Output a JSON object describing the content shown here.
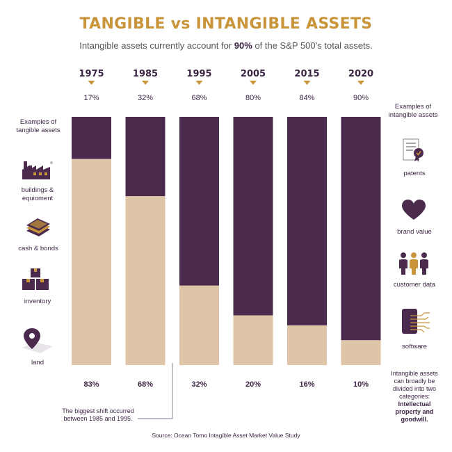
{
  "title": "TANGIBLE  vs INTANGIBLE ASSETS",
  "subtitle": {
    "before": "Intangible assets currently account for ",
    "bold": "90%",
    "after": " of the S&P 500’s total assets."
  },
  "tangible_examples": {
    "heading": "Examples of tangible assets",
    "items": [
      {
        "label": "buildings & equioment",
        "icon": "factory-icon"
      },
      {
        "label": "cash & bonds",
        "icon": "cash-stack-icon"
      },
      {
        "label": "inventory",
        "icon": "boxes-icon"
      },
      {
        "label": "land",
        "icon": "map-pin-icon"
      }
    ]
  },
  "intangible_examples": {
    "heading": "Examples of intangible assets",
    "items": [
      {
        "label": "patents",
        "icon": "certificate-icon"
      },
      {
        "label": "brand value",
        "icon": "heart-icon"
      },
      {
        "label": "customer data",
        "icon": "people-icon"
      },
      {
        "label": "software",
        "icon": "circuit-icon"
      }
    ]
  },
  "intangible_note": {
    "text": "Intangible assets can broadly be divided into two categories: ",
    "bold": "Intellectual property and goodwill."
  },
  "shift_note": "The biggest shift occurred between 1985 and 1995.",
  "source": "Source: Ocean Tomo Intagible Asset Market Value Study",
  "colors": {
    "intangible": "#4a2b4d",
    "tangible": "#dfc5a7",
    "accent": "#c9953a",
    "text": "#3d2645"
  },
  "chart_data": {
    "type": "bar",
    "stacked": true,
    "categories": [
      "1975",
      "1985",
      "1995",
      "2005",
      "2015",
      "2020"
    ],
    "series": [
      {
        "name": "intangible",
        "values": [
          17,
          32,
          68,
          80,
          84,
          90
        ]
      },
      {
        "name": "tangible",
        "values": [
          83,
          68,
          32,
          20,
          16,
          10
        ]
      }
    ],
    "top_labels": [
      "17%",
      "32%",
      "68%",
      "80%",
      "84%",
      "90%"
    ],
    "bottom_labels": [
      "83%",
      "68%",
      "32%",
      "20%",
      "16%",
      "10%"
    ],
    "ylim": [
      0,
      100
    ],
    "unit": "%",
    "grid": false
  }
}
